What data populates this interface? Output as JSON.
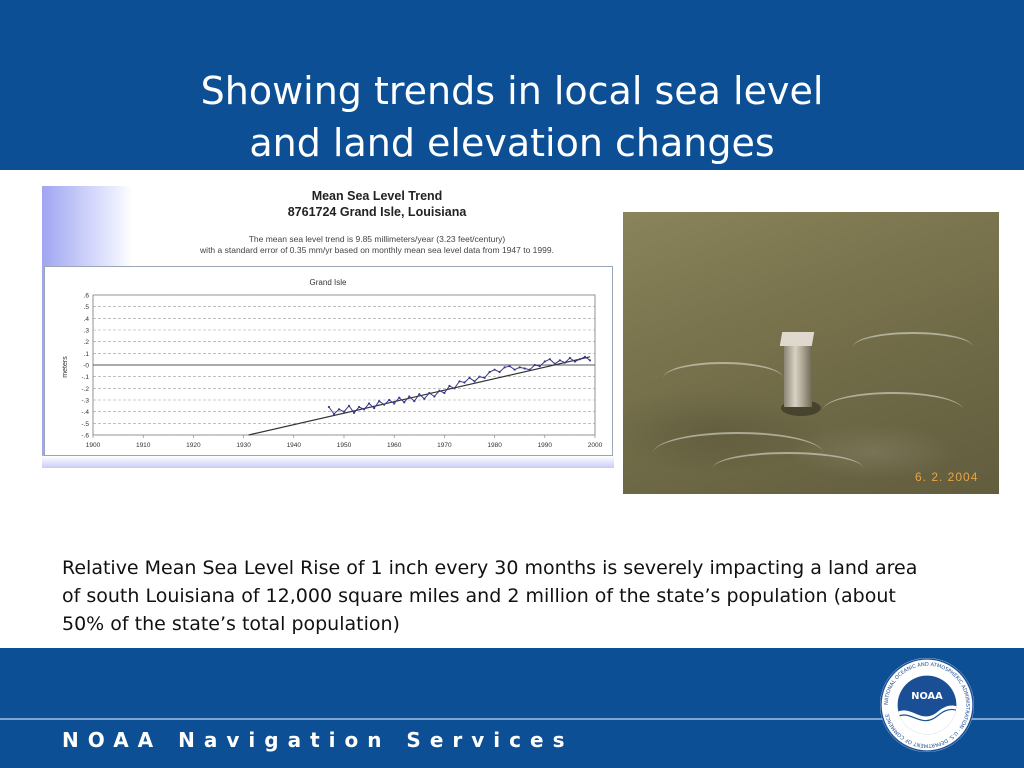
{
  "slide": {
    "title_line1": "Showing trends in local sea level",
    "title_line2": "and land elevation changes",
    "caption_line1": "Relative Mean Sea Level Rise of 1 inch every 30 months is severely impacting a land area",
    "caption_line2": "of south Louisiana of 12,000 square miles and 2 million of the state’s population (about",
    "caption_line3": "50% of the state’s total population)",
    "footer": "NOAA Navigation Services"
  },
  "photo": {
    "date_stamp": "6. 2. 2004"
  },
  "logo": {
    "text": "NOAA",
    "ring_text": "NATIONAL OCEANIC AND ATMOSPHERIC ADMINISTRATION · U.S. DEPARTMENT OF COMMERCE"
  },
  "colors": {
    "header_blue": "#0d4f94",
    "chart_series": "#3a3a8c",
    "date_stamp": "#e8a545"
  },
  "chart_data": {
    "type": "line",
    "title": "Mean Sea Level Trend",
    "subtitle": "8761724 Grand Isle, Louisiana",
    "note_line1": "The mean sea level trend is 9.85 millimeters/year (3.23 feet/century)",
    "note_line2": "with a standard error of 0.35 mm/yr based on monthly mean sea level data from 1947 to 1999.",
    "plot_title": "Grand Isle",
    "xlabel": "",
    "ylabel": "meters",
    "xlim": [
      1900,
      2000
    ],
    "ylim": [
      -0.6,
      0.6
    ],
    "x_ticks": [
      "1900",
      "1910",
      "1920",
      "1930",
      "1940",
      "1950",
      "1960",
      "1970",
      "1980",
      "1990",
      "2000"
    ],
    "y_ticks": [
      ".6",
      ".5",
      ".4",
      ".3",
      ".2",
      ".1",
      "-0",
      "-.1",
      "-.2",
      "-.3",
      "-.4",
      "-.5",
      "-.6"
    ],
    "grid": true,
    "series": [
      {
        "values": [
          [
            1947,
            -0.36
          ],
          [
            1948,
            -0.42
          ],
          [
            1949,
            -0.38
          ],
          [
            1950,
            -0.4
          ],
          [
            1951,
            -0.35
          ],
          [
            1952,
            -0.41
          ],
          [
            1953,
            -0.36
          ],
          [
            1954,
            -0.38
          ],
          [
            1955,
            -0.33
          ],
          [
            1956,
            -0.37
          ],
          [
            1957,
            -0.31
          ],
          [
            1958,
            -0.34
          ],
          [
            1959,
            -0.3
          ],
          [
            1960,
            -0.33
          ],
          [
            1961,
            -0.28
          ],
          [
            1962,
            -0.32
          ],
          [
            1963,
            -0.27
          ],
          [
            1964,
            -0.31
          ],
          [
            1965,
            -0.25
          ],
          [
            1966,
            -0.29
          ],
          [
            1967,
            -0.24
          ],
          [
            1968,
            -0.27
          ],
          [
            1969,
            -0.22
          ],
          [
            1970,
            -0.24
          ],
          [
            1971,
            -0.18
          ],
          [
            1972,
            -0.2
          ],
          [
            1973,
            -0.14
          ],
          [
            1974,
            -0.15
          ],
          [
            1975,
            -0.11
          ],
          [
            1976,
            -0.14
          ],
          [
            1977,
            -0.1
          ],
          [
            1978,
            -0.11
          ],
          [
            1979,
            -0.06
          ],
          [
            1980,
            -0.04
          ],
          [
            1981,
            -0.06
          ],
          [
            1982,
            -0.02
          ],
          [
            1983,
            -0.01
          ],
          [
            1984,
            -0.04
          ],
          [
            1985,
            -0.02
          ],
          [
            1986,
            -0.03
          ],
          [
            1987,
            -0.04
          ],
          [
            1988,
            0.0
          ],
          [
            1989,
            -0.01
          ],
          [
            1990,
            0.03
          ],
          [
            1991,
            0.05
          ],
          [
            1992,
            0.01
          ],
          [
            1993,
            0.04
          ],
          [
            1994,
            0.02
          ],
          [
            1995,
            0.06
          ],
          [
            1996,
            0.03
          ],
          [
            1997,
            0.05
          ],
          [
            1998,
            0.07
          ],
          [
            1999,
            0.04
          ]
        ]
      }
    ],
    "trend": {
      "x": [
        1931,
        1999
      ],
      "y": [
        -0.6,
        0.07
      ]
    }
  }
}
